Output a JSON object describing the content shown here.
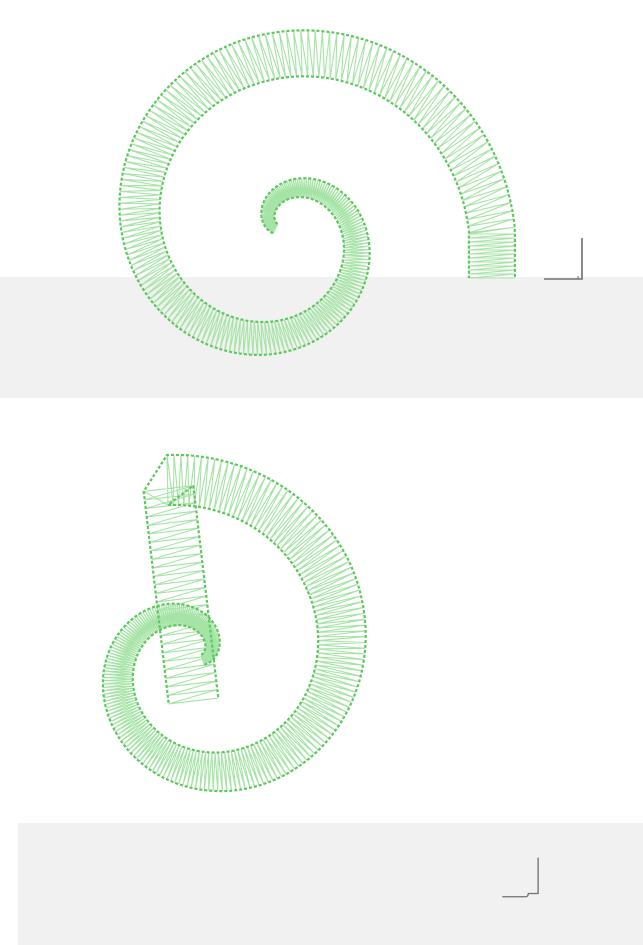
{
  "scene": {
    "panels": [
      {
        "id": "top",
        "motif": "embroidered-spiral-curl",
        "thread_color": "#5cc85c",
        "band_color": "#f1f1f1",
        "marker_icon": "corner-bracket-icon"
      },
      {
        "id": "bottom",
        "motif": "embroidered-spiral-curl",
        "thread_color": "#5cc85c",
        "band_color": "#f1f1f1",
        "marker_icon": "corner-bracket-icon"
      }
    ]
  },
  "colors": {
    "background": "#ffffff",
    "thread": "#5cc85c",
    "thread_light": "#a6e3a6",
    "band": "#f1f1f1",
    "marker": "#707070"
  }
}
